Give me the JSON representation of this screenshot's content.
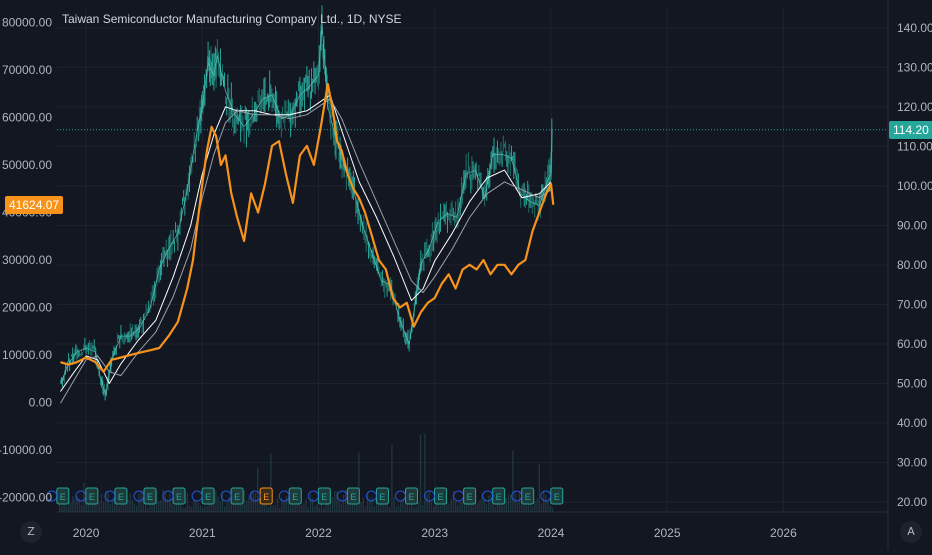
{
  "title": "Taiwan Semiconductor Manufacturing Company Ltd., 1D, NYSE",
  "colors": {
    "background": "#131722",
    "grid": "#1e222d",
    "price": "#26a69a",
    "spread": "#f7931a",
    "ma": "#e0e3eb",
    "axis_text": "#b2b5be",
    "last_price_bg": "#26a69a",
    "spread_tag_bg": "#f7931a"
  },
  "corner_buttons": {
    "left": "Z",
    "right": "A"
  },
  "chart_data": {
    "type": "line",
    "left_axis": {
      "ticks": [
        80000,
        70000,
        60000,
        50000,
        40000,
        30000,
        20000,
        10000,
        0,
        -10000,
        -20000
      ],
      "tick_labels": [
        "80000.00",
        "70000.00",
        "60000.00",
        "50000.00",
        "40000.00",
        "30000.00",
        "20000.00",
        "10000.00",
        "0.00",
        "-10000.00",
        "-20000.00"
      ],
      "ylim": [
        -23000,
        83000
      ]
    },
    "right_axis": {
      "ticks": [
        140,
        130,
        120,
        110,
        100,
        90,
        80,
        70,
        60,
        50,
        40,
        30,
        20
      ],
      "tick_labels": [
        "140.00",
        "130.00",
        "120.00",
        "110.00",
        "100.00",
        "90.00",
        "80.00",
        "70.00",
        "60.00",
        "50.00",
        "40.00",
        "30.00",
        "20.00"
      ],
      "ylim": [
        17.5,
        145
      ]
    },
    "x_axis": {
      "tick_labels": [
        "2020",
        "2021",
        "2022",
        "2023",
        "2024",
        "2025",
        "2026"
      ],
      "tick_values": [
        2020.0,
        2021.0,
        2022.0,
        2023.0,
        2024.0,
        2025.0,
        2026.0
      ],
      "xlim": [
        2019.75,
        2026.9
      ]
    },
    "last_price_label": "114.20",
    "last_price": 114.2,
    "spread_label": "41624.07",
    "spread_last": 41624.07,
    "series": [
      {
        "axis": "right",
        "style": "candles",
        "x": [
          2019.78,
          2019.85,
          2019.92,
          2020.0,
          2020.08,
          2020.12,
          2020.17,
          2020.22,
          2020.3,
          2020.38,
          2020.46,
          2020.55,
          2020.63,
          2020.71,
          2020.79,
          2020.87,
          2020.95,
          2021.0,
          2021.05,
          2021.1,
          2021.13,
          2021.2,
          2021.28,
          2021.36,
          2021.44,
          2021.52,
          2021.6,
          2021.68,
          2021.76,
          2021.84,
          2021.92,
          2022.0,
          2022.03,
          2022.08,
          2022.15,
          2022.22,
          2022.3,
          2022.38,
          2022.46,
          2022.54,
          2022.62,
          2022.7,
          2022.78,
          2022.83,
          2022.88,
          2022.95,
          2023.03,
          2023.11,
          2023.19,
          2023.27,
          2023.35,
          2023.43,
          2023.5,
          2023.58,
          2023.66,
          2023.74,
          2023.82,
          2023.9,
          2023.98,
          2024.0,
          2024.01
        ],
        "values": [
          50,
          55,
          58,
          59,
          58,
          52,
          47,
          56,
          62,
          62,
          64,
          69,
          79,
          84,
          88,
          99,
          113,
          120,
          131,
          128,
          133,
          124,
          118,
          115,
          118,
          122,
          123,
          117,
          118,
          123,
          125,
          128,
          141,
          120,
          112,
          105,
          99,
          90,
          83,
          76,
          75,
          66,
          60,
          70,
          80,
          84,
          91,
          93,
          92,
          103,
          104,
          97,
          108,
          108,
          107,
          98,
          96,
          95,
          102,
          103,
          114.2
        ]
      },
      {
        "axis": "right",
        "style": "line",
        "name": "",
        "x": [
          2019.78,
          2019.9,
          2020.0,
          2020.1,
          2020.2,
          2020.3,
          2020.45,
          2020.6,
          2020.75,
          2020.9,
          2021.0,
          2021.1,
          2021.2,
          2021.3,
          2021.45,
          2021.6,
          2021.75,
          2021.9,
          2022.0,
          2022.1,
          2022.2,
          2022.35,
          2022.5,
          2022.65,
          2022.8,
          2022.9,
          2023.0,
          2023.15,
          2023.3,
          2023.45,
          2023.6,
          2023.75,
          2023.9,
          2024.0
        ],
        "values": [
          48,
          53,
          57,
          56,
          50,
          55,
          61,
          66,
          77,
          90,
          103,
          113,
          120,
          119,
          119,
          118,
          118,
          119,
          121,
          123,
          114,
          101,
          92,
          82,
          71,
          74,
          81,
          88,
          96,
          102,
          104,
          97,
          98,
          101
        ]
      },
      {
        "axis": "right",
        "style": "line",
        "name": "",
        "x": [
          2019.78,
          2019.9,
          2020.0,
          2020.1,
          2020.2,
          2020.3,
          2020.45,
          2020.6,
          2020.75,
          2020.9,
          2021.0,
          2021.1,
          2021.2,
          2021.3,
          2021.45,
          2021.6,
          2021.75,
          2021.9,
          2022.0,
          2022.1,
          2022.2,
          2022.35,
          2022.5,
          2022.65,
          2022.8,
          2022.9,
          2023.0,
          2023.15,
          2023.3,
          2023.45,
          2023.6,
          2023.75,
          2023.9,
          2024.0
        ],
        "values": [
          45,
          51,
          56,
          57,
          53,
          52,
          58,
          63,
          72,
          84,
          97,
          108,
          116,
          119,
          118,
          118,
          117,
          118,
          120,
          122,
          117,
          106,
          96,
          86,
          76,
          73,
          77,
          84,
          92,
          98,
          101,
          99,
          97,
          99
        ]
      },
      {
        "axis": "left",
        "style": "line",
        "name": "",
        "x": [
          2019.78,
          2019.85,
          2019.92,
          2020.0,
          2020.08,
          2020.15,
          2020.22,
          2020.3,
          2020.38,
          2020.46,
          2020.55,
          2020.63,
          2020.71,
          2020.79,
          2020.87,
          2020.92,
          2020.96,
          2021.0,
          2021.04,
          2021.08,
          2021.12,
          2021.16,
          2021.2,
          2021.25,
          2021.3,
          2021.36,
          2021.42,
          2021.48,
          2021.54,
          2021.6,
          2021.66,
          2021.72,
          2021.78,
          2021.84,
          2021.9,
          2021.96,
          2022.02,
          2022.08,
          2022.12,
          2022.16,
          2022.2,
          2022.25,
          2022.3,
          2022.35,
          2022.4,
          2022.46,
          2022.52,
          2022.58,
          2022.64,
          2022.7,
          2022.76,
          2022.82,
          2022.88,
          2022.94,
          2023.0,
          2023.06,
          2023.12,
          2023.18,
          2023.24,
          2023.3,
          2023.36,
          2023.42,
          2023.48,
          2023.54,
          2023.6,
          2023.66,
          2023.72,
          2023.78,
          2023.84,
          2023.9,
          2023.96,
          2024.0,
          2024.02
        ],
        "values": [
          8500,
          8000,
          8500,
          9500,
          8500,
          6500,
          9000,
          9500,
          10000,
          10500,
          11000,
          11500,
          14000,
          17000,
          24000,
          30000,
          38000,
          46000,
          53000,
          58000,
          56000,
          50000,
          52000,
          44000,
          39000,
          34000,
          44000,
          40000,
          46000,
          54000,
          55000,
          48000,
          42000,
          52000,
          54000,
          50000,
          58000,
          67000,
          62000,
          55000,
          53000,
          48000,
          45000,
          43000,
          40000,
          35000,
          30000,
          28000,
          22000,
          20000,
          21000,
          16000,
          19000,
          21000,
          22000,
          25000,
          27000,
          24000,
          28000,
          29000,
          28000,
          30000,
          27000,
          29000,
          29000,
          27000,
          29000,
          30000,
          36000,
          40000,
          44000,
          46000,
          41624
        ]
      }
    ]
  }
}
